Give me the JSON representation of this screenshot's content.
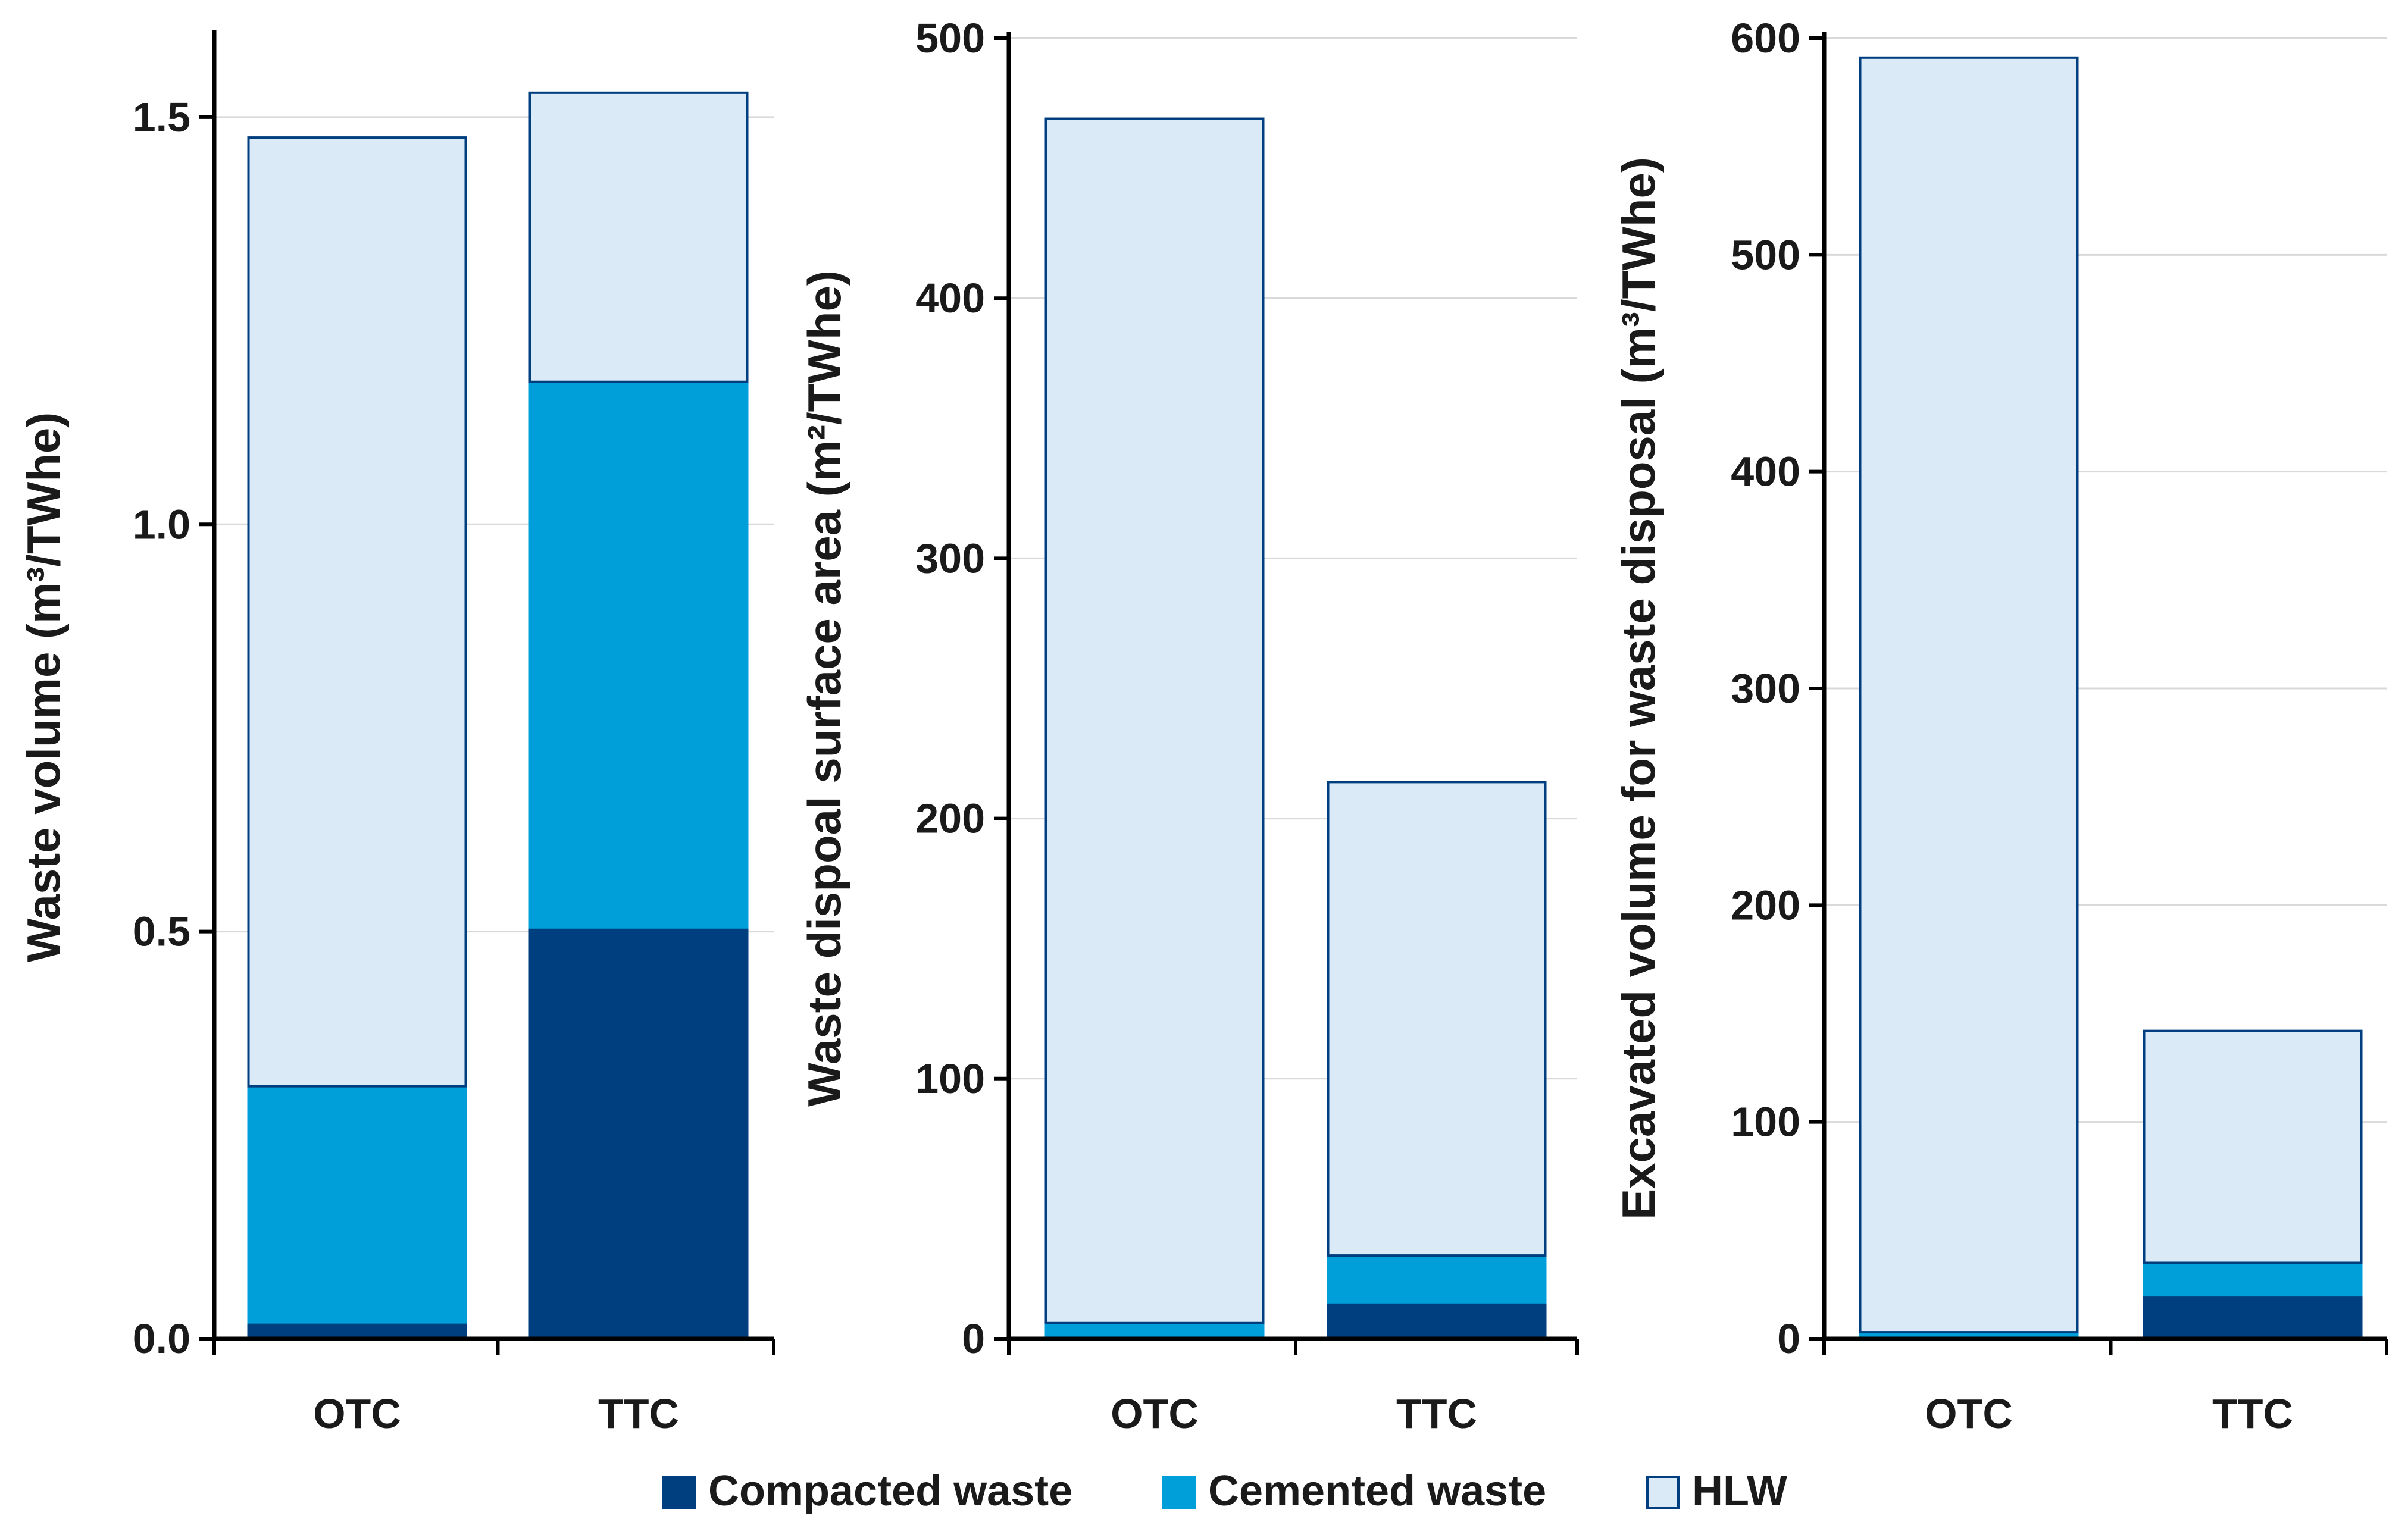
{
  "chart_data": [
    {
      "type": "bar",
      "stacked": true,
      "categories": [
        "OTC",
        "TTC"
      ],
      "ylabel": "Waste volume (m³/TWhe)",
      "ylim": [
        0,
        1.6
      ],
      "yticks": [
        "0.0",
        "0.5",
        "1.0",
        "1.5"
      ],
      "ytick_values": [
        0,
        0.5,
        1.0,
        1.5
      ],
      "grid": true,
      "series": [
        {
          "name": "Compacted waste",
          "values": [
            0.02,
            0.505
          ]
        },
        {
          "name": "Cemented waste",
          "values": [
            0.29,
            0.67
          ]
        },
        {
          "name": "HLW",
          "values": [
            1.165,
            0.355
          ]
        }
      ]
    },
    {
      "type": "bar",
      "stacked": true,
      "categories": [
        "OTC",
        "TTC"
      ],
      "ylabel": "Waste dispoal surface area (m²/TWhe)",
      "ylim": [
        0,
        500
      ],
      "yticks": [
        "0",
        "100",
        "200",
        "300",
        "400",
        "500"
      ],
      "ytick_values": [
        0,
        100,
        200,
        300,
        400,
        500
      ],
      "grid": true,
      "series": [
        {
          "name": "Compacted waste",
          "values": [
            0,
            14
          ]
        },
        {
          "name": "Cemented waste",
          "values": [
            6,
            18
          ]
        },
        {
          "name": "HLW",
          "values": [
            463,
            182
          ]
        }
      ]
    },
    {
      "type": "bar",
      "stacked": true,
      "categories": [
        "OTC",
        "TTC"
      ],
      "ylabel": "Excavated volume for waste disposal (m³/TWhe)",
      "ylim": [
        0,
        600
      ],
      "yticks": [
        "0",
        "100",
        "200",
        "300",
        "400",
        "500",
        "600"
      ],
      "ytick_values": [
        0,
        100,
        200,
        300,
        400,
        500,
        600
      ],
      "grid": true,
      "series": [
        {
          "name": "Compacted waste",
          "values": [
            1,
            20
          ]
        },
        {
          "name": "Cemented waste",
          "values": [
            2,
            15
          ]
        },
        {
          "name": "HLW",
          "values": [
            588,
            107
          ]
        }
      ]
    }
  ],
  "legend": {
    "position": "bottom",
    "items": [
      {
        "label": "Compacted waste",
        "color": "#003f7f"
      },
      {
        "label": "Cemented waste",
        "color": "#009fd9"
      },
      {
        "label": "HLW",
        "color": "#daeaf7"
      }
    ]
  }
}
